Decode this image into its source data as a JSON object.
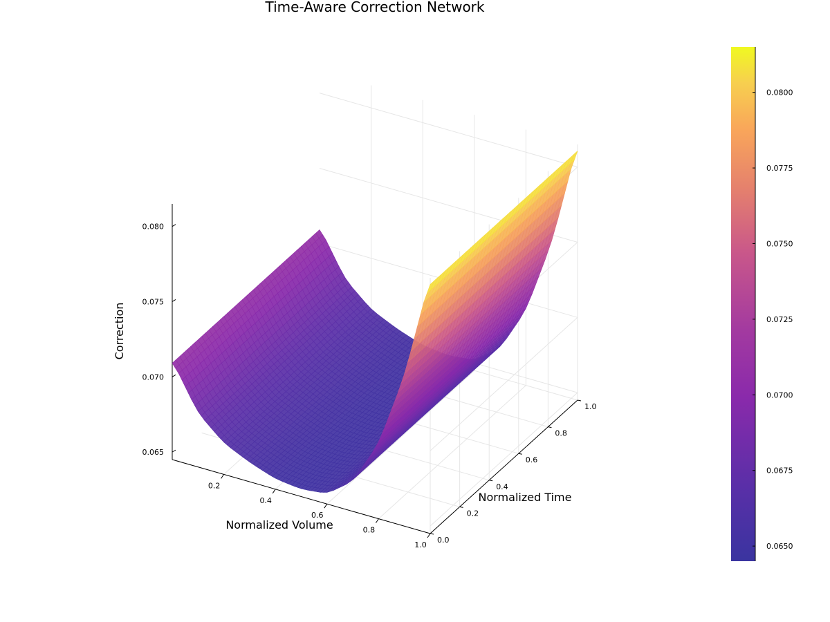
{
  "chart_data": {
    "type": "surface",
    "title": "Time-Aware Correction Network",
    "xlabel": "Normalized Volume",
    "ylabel": "Normalized Time",
    "zlabel": "Correction",
    "xlim": [
      0.0,
      1.0
    ],
    "ylim": [
      0.0,
      1.0
    ],
    "zlim": [
      0.0645,
      0.0815
    ],
    "x_ticks": [
      "0.2",
      "0.4",
      "0.6",
      "0.8",
      "1.0"
    ],
    "y_ticks": [
      "0.0",
      "0.2",
      "0.4",
      "0.6",
      "0.8",
      "1.0"
    ],
    "z_ticks": [
      "0.065",
      "0.070",
      "0.075",
      "0.080"
    ],
    "colorbar": {
      "colormap": "plasma",
      "range": [
        0.0645,
        0.0815
      ],
      "ticks": [
        "0.0650",
        "0.0675",
        "0.0700",
        "0.0725",
        "0.0750",
        "0.0775",
        "0.0800"
      ]
    },
    "surface_function": "quadratic in volume, constant along time",
    "profile": {
      "volume": [
        0.0,
        0.1,
        0.2,
        0.3,
        0.4,
        0.5,
        0.6,
        0.7,
        0.8,
        0.9,
        1.0
      ],
      "correction": [
        0.0711,
        0.0681,
        0.0666,
        0.0658,
        0.0652,
        0.065,
        0.0652,
        0.0665,
        0.0695,
        0.0745,
        0.0815
      ]
    },
    "grid": true,
    "legend": "none",
    "colors": {
      "grid": "#e6e6e6",
      "axis": "#000000",
      "surface_low": "#3a34a0",
      "surface_high": "#f0f921"
    }
  }
}
